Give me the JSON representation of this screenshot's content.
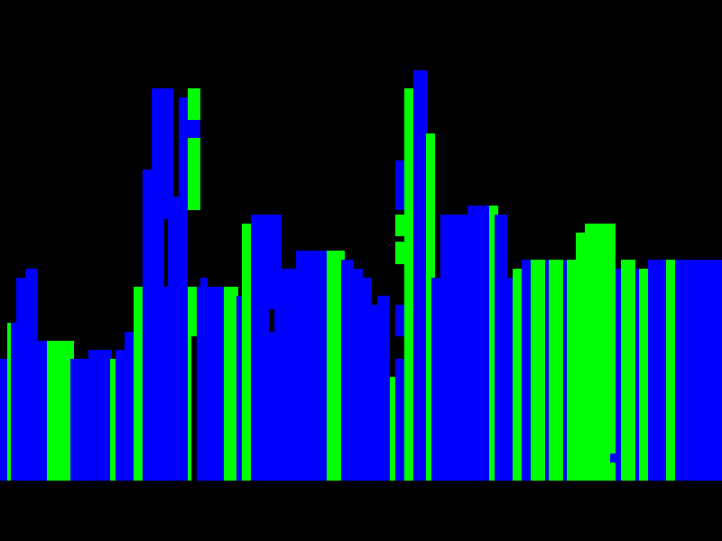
{
  "scene": {
    "name": "city-skyline",
    "colors": {
      "background": "#000000",
      "green": "#00ff00",
      "blue": "#0000ff"
    }
  }
}
